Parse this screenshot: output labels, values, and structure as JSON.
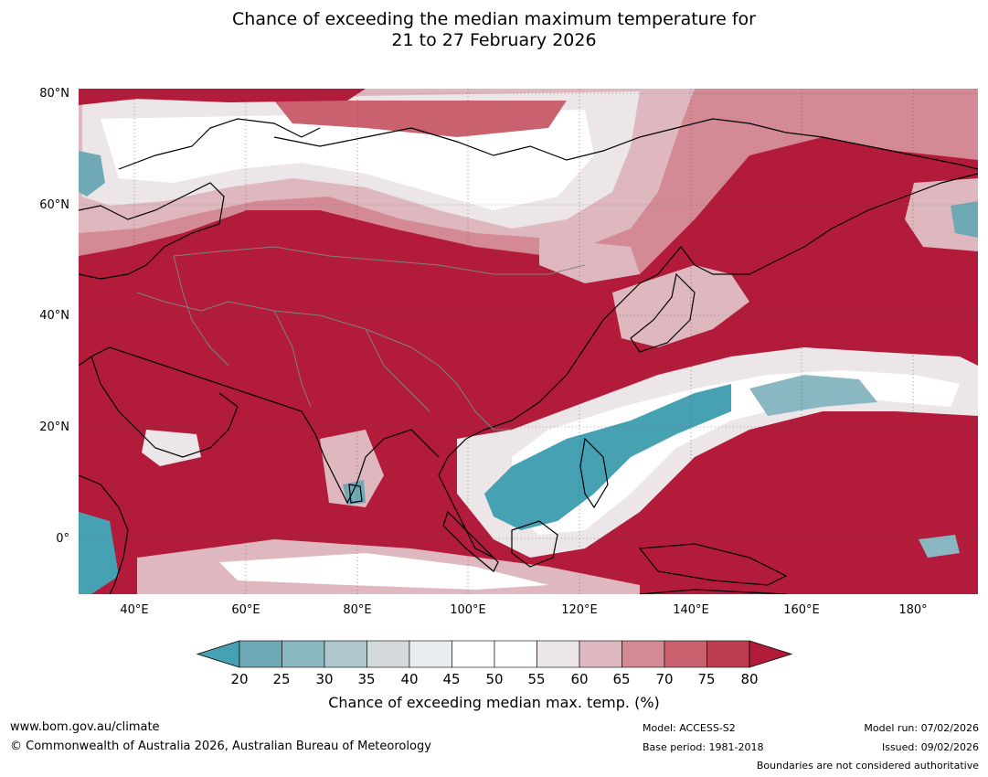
{
  "title": {
    "line1": "Chance of exceeding the median maximum temperature for",
    "line2": "21 to 27 February 2026"
  },
  "map": {
    "lat_labels": [
      "80°N",
      "60°N",
      "40°N",
      "20°N",
      "0°"
    ],
    "lon_labels": [
      "40°E",
      "60°E",
      "80°E",
      "100°E",
      "120°E",
      "140°E",
      "160°E",
      "180°"
    ],
    "lat_range": [
      -10,
      80
    ],
    "lon_range": [
      30,
      191
    ],
    "dominant_category": "80+",
    "colors": {
      "high": "#b31b3a",
      "cool": "#4aa3b4",
      "coast": "#000000",
      "border": "#808080"
    }
  },
  "colorbar": {
    "ticks": [
      "20",
      "25",
      "30",
      "35",
      "40",
      "45",
      "50",
      "55",
      "60",
      "65",
      "70",
      "75",
      "80"
    ],
    "colors": [
      "#46a1b3",
      "#6fa9b6",
      "#89b8c3",
      "#aec6cc",
      "#d3d8da",
      "#e8eef0",
      "#ffffff",
      "#ffffff",
      "#ece6e8",
      "#dfb8bf",
      "#d48a94",
      "#c9616e",
      "#bd3e50",
      "#b31b3a"
    ],
    "label": "Chance of exceeding median max. temp. (%)"
  },
  "footer": {
    "website": "www.bom.gov.au/climate",
    "copyright": "© Commonwealth of Australia 2026, Australian Bureau of Meteorology",
    "model": "Model: ACCESS-S2",
    "base_period": "Base period: 1981-2018",
    "model_run": "Model run: 07/02/2026",
    "issued": "Issued: 09/02/2026",
    "disclaimer": "Boundaries are not considered authoritative"
  }
}
